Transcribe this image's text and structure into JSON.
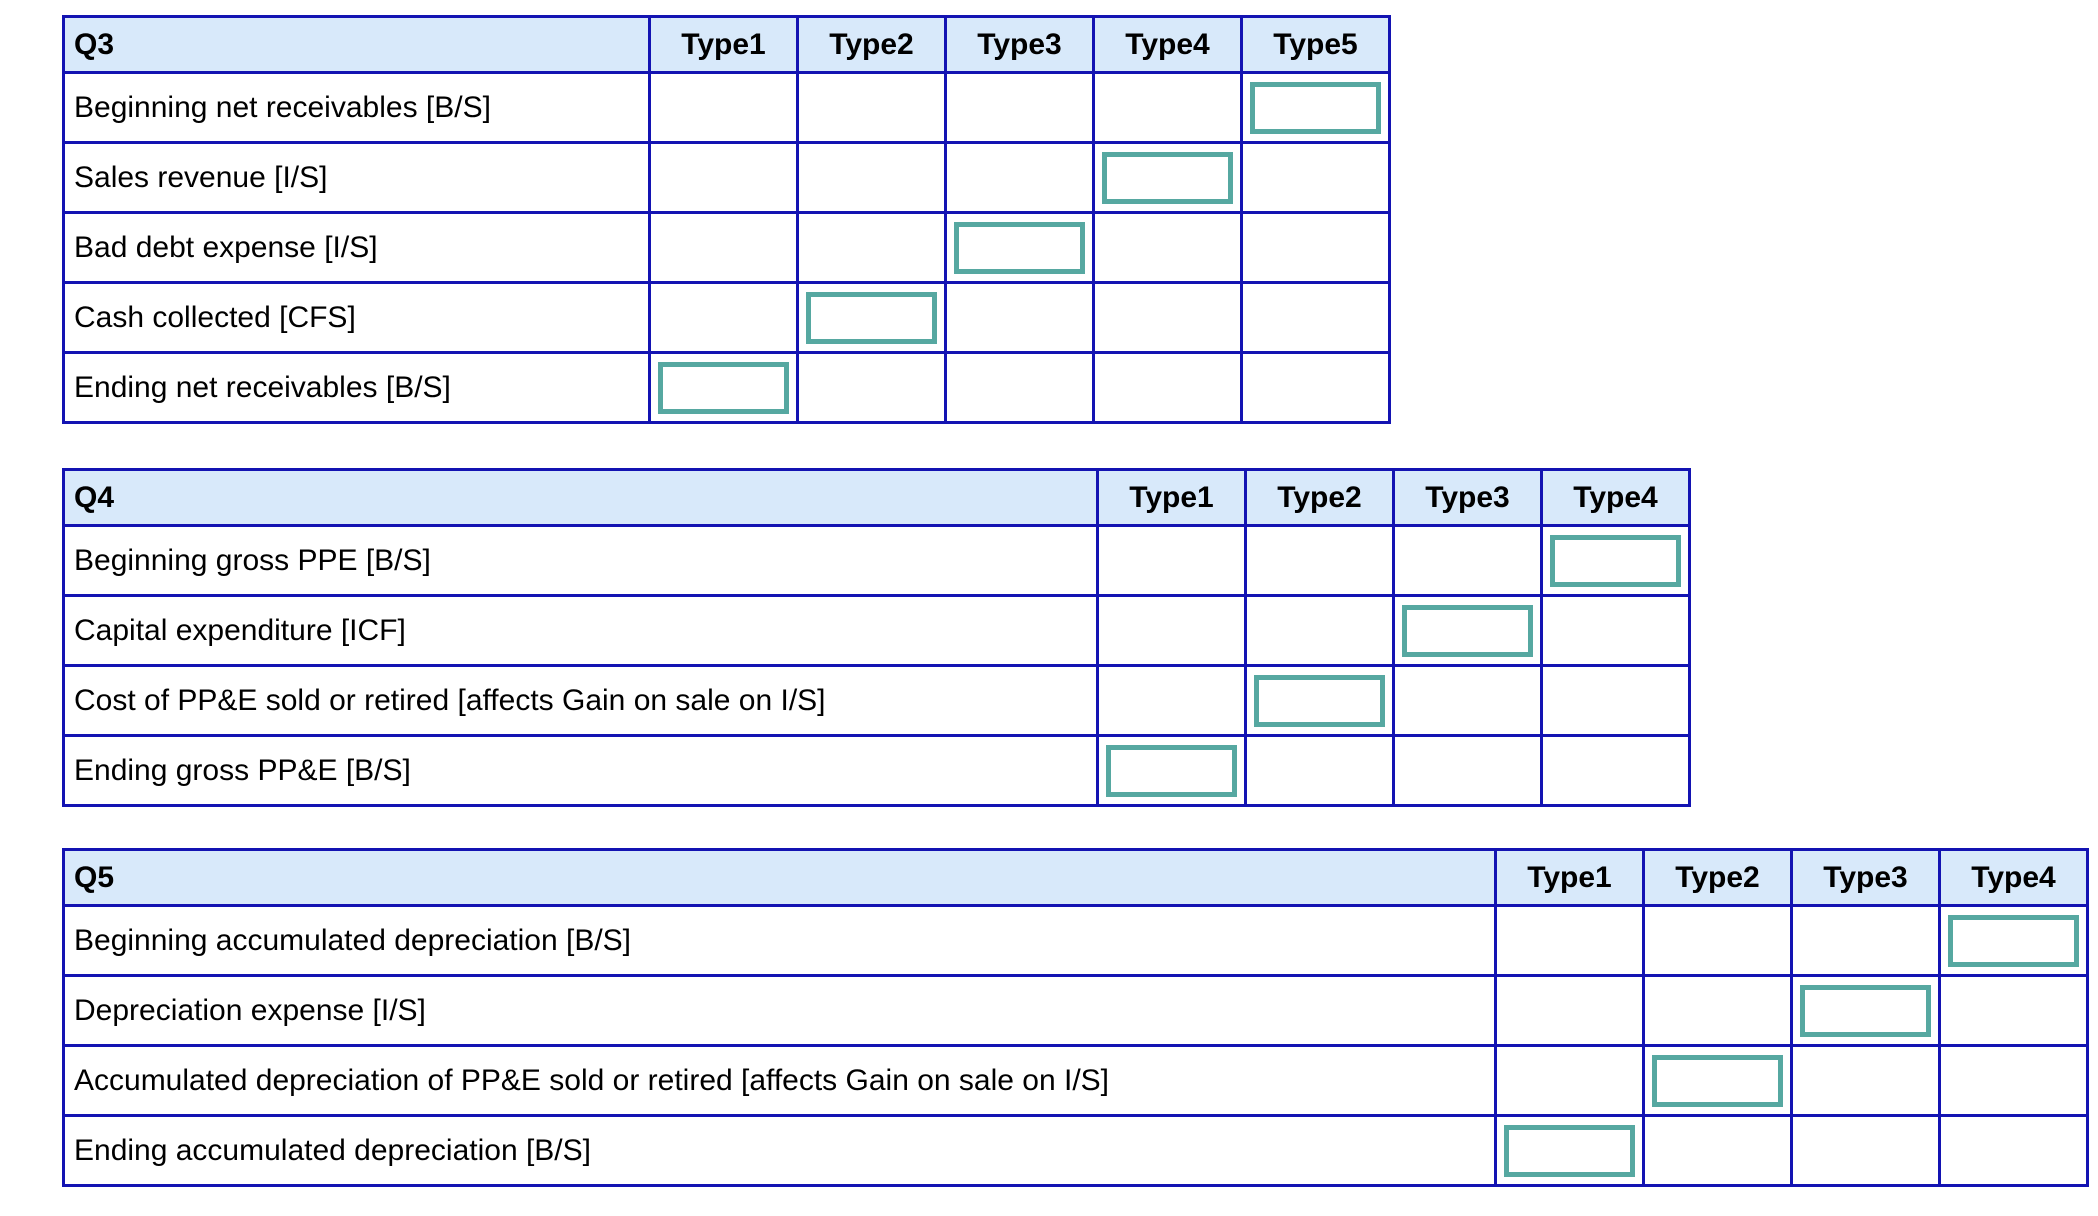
{
  "colors": {
    "table_border": "#1313b2",
    "header_background": "#d8e9fa",
    "input_border": "#56a8a1",
    "text": "#000000",
    "page_background": "#ffffff"
  },
  "tables": [
    {
      "id": "Q3",
      "title": "Q3",
      "columns": [
        "Type1",
        "Type2",
        "Type3",
        "Type4",
        "Type5"
      ],
      "rows": [
        {
          "label": "Beginning net receivables [B/S]",
          "input_col": 5,
          "input_value": ""
        },
        {
          "label": "Sales revenue [I/S]",
          "input_col": 4,
          "input_value": ""
        },
        {
          "label": "Bad debt expense [I/S]",
          "input_col": 3,
          "input_value": ""
        },
        {
          "label": "Cash collected [CFS]",
          "input_col": 2,
          "input_value": ""
        },
        {
          "label": "Ending net receivables [B/S]",
          "input_col": 1,
          "input_value": ""
        }
      ]
    },
    {
      "id": "Q4",
      "title": "Q4",
      "columns": [
        "Type1",
        "Type2",
        "Type3",
        "Type4"
      ],
      "rows": [
        {
          "label": "Beginning gross PPE [B/S]",
          "input_col": 4,
          "input_value": ""
        },
        {
          "label": "Capital expenditure [ICF]",
          "input_col": 3,
          "input_value": ""
        },
        {
          "label": "Cost of PP&E sold or retired [affects Gain on sale on I/S]",
          "input_col": 2,
          "input_value": ""
        },
        {
          "label": "Ending gross PP&E [B/S]",
          "input_col": 1,
          "input_value": ""
        }
      ]
    },
    {
      "id": "Q5",
      "title": "Q5",
      "columns": [
        "Type1",
        "Type2",
        "Type3",
        "Type4"
      ],
      "rows": [
        {
          "label": "Beginning accumulated depreciation [B/S]",
          "input_col": 4,
          "input_value": ""
        },
        {
          "label": "Depreciation expense [I/S]",
          "input_col": 3,
          "input_value": ""
        },
        {
          "label": "Accumulated depreciation of PP&E sold or retired [affects Gain on sale on I/S]",
          "input_col": 2,
          "input_value": ""
        },
        {
          "label": "Ending accumulated depreciation [B/S]",
          "input_col": 1,
          "input_value": ""
        }
      ]
    }
  ]
}
